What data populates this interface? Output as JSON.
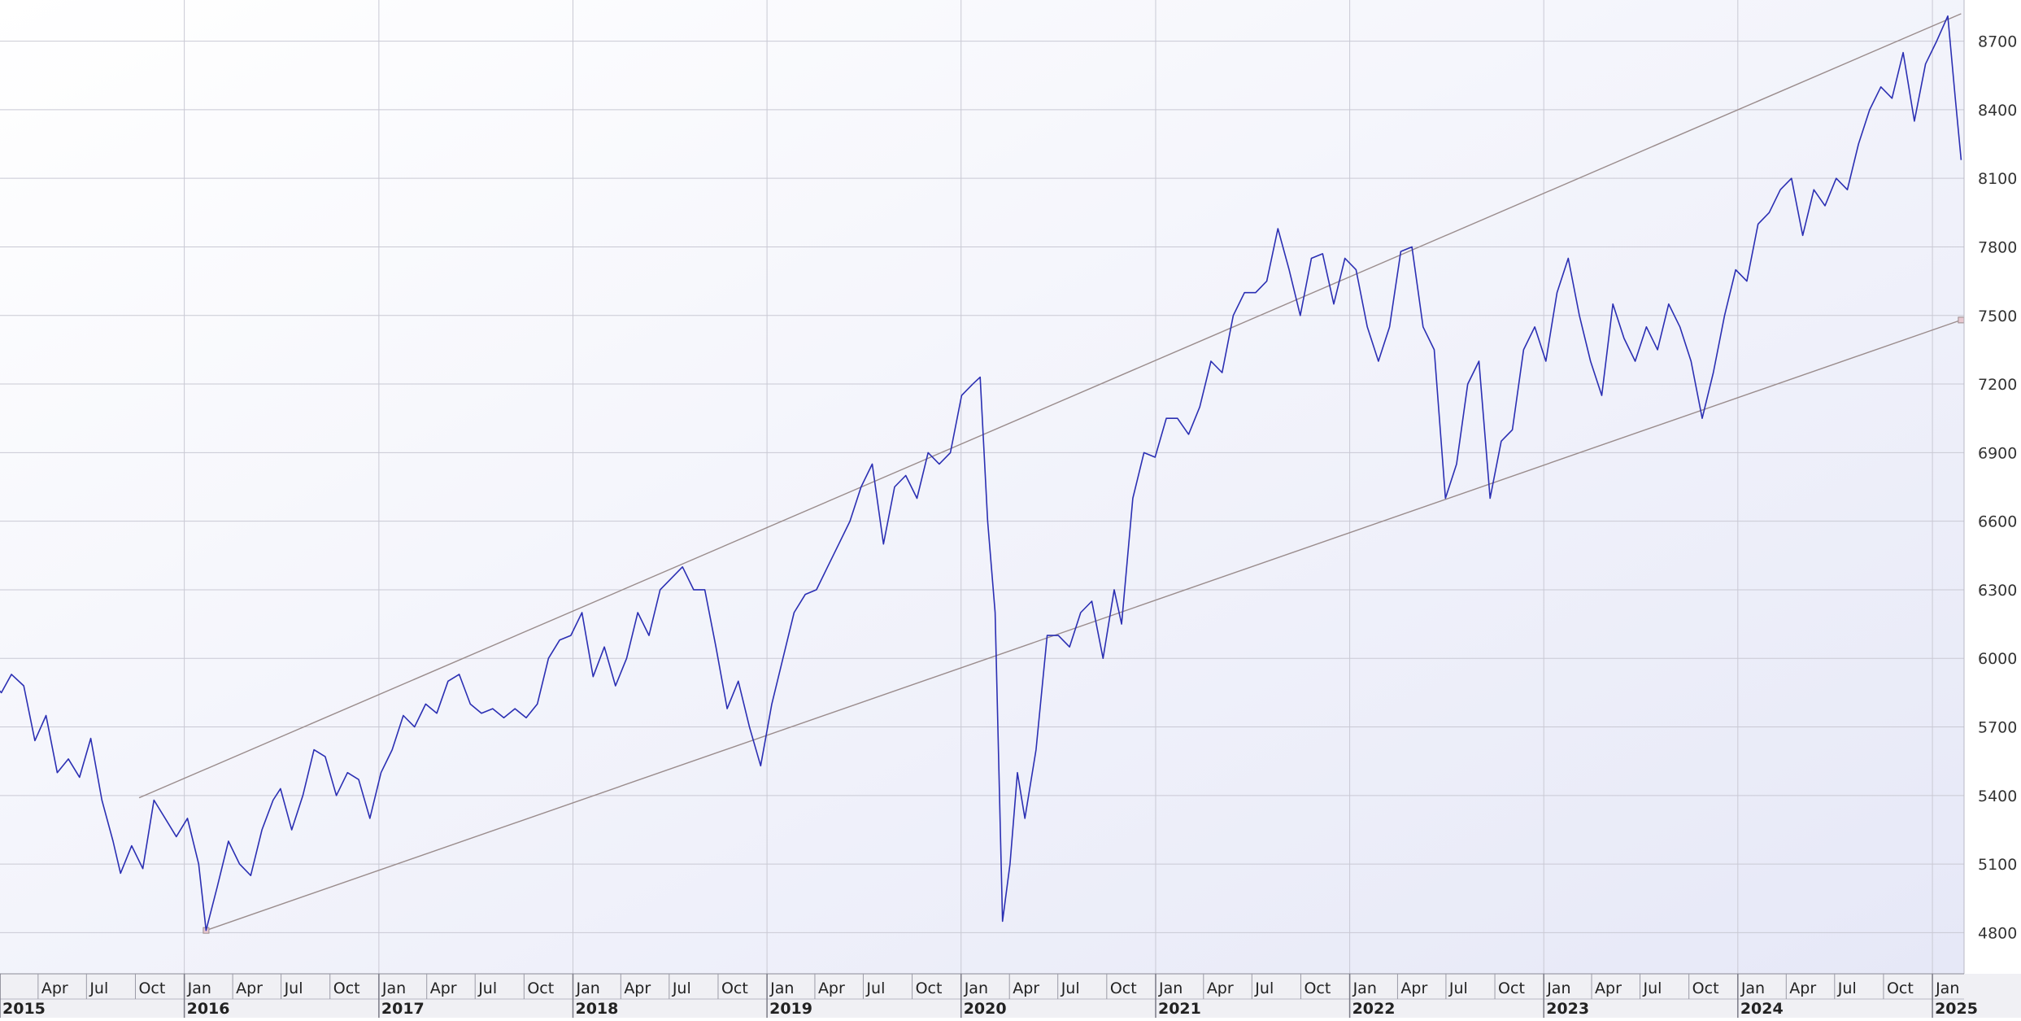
{
  "colors": {
    "plot_bg_top": "#ffffff",
    "plot_bg_bottom": "#e6e8f7",
    "price_line": "#2b2fb3",
    "channel_line": "#9a8c8c",
    "grid": "#c9c9d4",
    "axis_band": "#f0f0f4"
  },
  "chart_data": {
    "type": "line",
    "title": "",
    "xlabel": "",
    "ylabel": "",
    "x_range": [
      "2015-01-01",
      "2025-02-28"
    ],
    "ylim": [
      4620,
      8880
    ],
    "y_axis_position": "right",
    "grid": true,
    "y_ticks": [
      4800,
      5100,
      5400,
      5700,
      6000,
      6300,
      6600,
      6900,
      7200,
      7500,
      7800,
      8100,
      8400,
      8700
    ],
    "x_month_ticks": [
      {
        "date": "2015-04-01",
        "label": "Apr"
      },
      {
        "date": "2015-07-01",
        "label": "Jul"
      },
      {
        "date": "2015-10-01",
        "label": "Oct"
      },
      {
        "date": "2016-01-01",
        "label": "Jan"
      },
      {
        "date": "2016-04-01",
        "label": "Apr"
      },
      {
        "date": "2016-07-01",
        "label": "Jul"
      },
      {
        "date": "2016-10-01",
        "label": "Oct"
      },
      {
        "date": "2017-01-01",
        "label": "Jan"
      },
      {
        "date": "2017-04-01",
        "label": "Apr"
      },
      {
        "date": "2017-07-01",
        "label": "Jul"
      },
      {
        "date": "2017-10-01",
        "label": "Oct"
      },
      {
        "date": "2018-01-01",
        "label": "Jan"
      },
      {
        "date": "2018-04-01",
        "label": "Apr"
      },
      {
        "date": "2018-07-01",
        "label": "Jul"
      },
      {
        "date": "2018-10-01",
        "label": "Oct"
      },
      {
        "date": "2019-01-01",
        "label": "Jan"
      },
      {
        "date": "2019-04-01",
        "label": "Apr"
      },
      {
        "date": "2019-07-01",
        "label": "Jul"
      },
      {
        "date": "2019-10-01",
        "label": "Oct"
      },
      {
        "date": "2020-01-01",
        "label": "Jan"
      },
      {
        "date": "2020-04-01",
        "label": "Apr"
      },
      {
        "date": "2020-07-01",
        "label": "Jul"
      },
      {
        "date": "2020-10-01",
        "label": "Oct"
      },
      {
        "date": "2021-01-01",
        "label": "Jan"
      },
      {
        "date": "2021-04-01",
        "label": "Apr"
      },
      {
        "date": "2021-07-01",
        "label": "Jul"
      },
      {
        "date": "2021-10-01",
        "label": "Oct"
      },
      {
        "date": "2022-01-01",
        "label": "Jan"
      },
      {
        "date": "2022-04-01",
        "label": "Apr"
      },
      {
        "date": "2022-07-01",
        "label": "Jul"
      },
      {
        "date": "2022-10-01",
        "label": "Oct"
      },
      {
        "date": "2023-01-01",
        "label": "Jan"
      },
      {
        "date": "2023-04-01",
        "label": "Apr"
      },
      {
        "date": "2023-07-01",
        "label": "Jul"
      },
      {
        "date": "2023-10-01",
        "label": "Oct"
      },
      {
        "date": "2024-01-01",
        "label": "Jan"
      },
      {
        "date": "2024-04-01",
        "label": "Apr"
      },
      {
        "date": "2024-07-01",
        "label": "Jul"
      },
      {
        "date": "2024-10-01",
        "label": "Oct"
      },
      {
        "date": "2025-01-01",
        "label": "Jan"
      }
    ],
    "x_year_ticks": [
      {
        "date": "2015-01-01",
        "label": "2015"
      },
      {
        "date": "2016-01-01",
        "label": "2016"
      },
      {
        "date": "2017-01-01",
        "label": "2017"
      },
      {
        "date": "2018-01-01",
        "label": "2018"
      },
      {
        "date": "2019-01-01",
        "label": "2019"
      },
      {
        "date": "2020-01-01",
        "label": "2020"
      },
      {
        "date": "2021-01-01",
        "label": "2021"
      },
      {
        "date": "2022-01-01",
        "label": "2022"
      },
      {
        "date": "2023-01-01",
        "label": "2023"
      },
      {
        "date": "2024-01-01",
        "label": "2024"
      },
      {
        "date": "2025-01-01",
        "label": "2025"
      }
    ],
    "series": [
      {
        "points": [
          [
            "2015-01-01",
            5900
          ],
          [
            "2015-01-22",
            5850
          ],
          [
            "2015-02-10",
            5930
          ],
          [
            "2015-03-05",
            5880
          ],
          [
            "2015-03-26",
            5640
          ],
          [
            "2015-04-16",
            5750
          ],
          [
            "2015-05-07",
            5500
          ],
          [
            "2015-05-28",
            5560
          ],
          [
            "2015-06-18",
            5480
          ],
          [
            "2015-07-09",
            5650
          ],
          [
            "2015-07-30",
            5380
          ],
          [
            "2015-08-20",
            5200
          ],
          [
            "2015-09-03",
            5060
          ],
          [
            "2015-09-24",
            5180
          ],
          [
            "2015-10-15",
            5080
          ],
          [
            "2015-11-05",
            5380
          ],
          [
            "2015-11-26",
            5300
          ],
          [
            "2015-12-17",
            5220
          ],
          [
            "2016-01-07",
            5300
          ],
          [
            "2016-01-28",
            5100
          ],
          [
            "2016-02-11",
            4810
          ],
          [
            "2016-03-03",
            5000
          ],
          [
            "2016-03-24",
            5200
          ],
          [
            "2016-04-14",
            5100
          ],
          [
            "2016-05-05",
            5050
          ],
          [
            "2016-05-26",
            5250
          ],
          [
            "2016-06-16",
            5380
          ],
          [
            "2016-06-30",
            5430
          ],
          [
            "2016-07-21",
            5250
          ],
          [
            "2016-08-11",
            5400
          ],
          [
            "2016-09-01",
            5600
          ],
          [
            "2016-09-22",
            5570
          ],
          [
            "2016-10-13",
            5400
          ],
          [
            "2016-11-03",
            5500
          ],
          [
            "2016-11-24",
            5470
          ],
          [
            "2016-12-15",
            5300
          ],
          [
            "2017-01-05",
            5500
          ],
          [
            "2017-01-26",
            5600
          ],
          [
            "2017-02-16",
            5750
          ],
          [
            "2017-03-09",
            5700
          ],
          [
            "2017-03-30",
            5800
          ],
          [
            "2017-04-20",
            5760
          ],
          [
            "2017-05-11",
            5900
          ],
          [
            "2017-06-01",
            5930
          ],
          [
            "2017-06-22",
            5800
          ],
          [
            "2017-07-13",
            5760
          ],
          [
            "2017-08-03",
            5780
          ],
          [
            "2017-08-24",
            5740
          ],
          [
            "2017-09-14",
            5780
          ],
          [
            "2017-10-05",
            5740
          ],
          [
            "2017-10-26",
            5800
          ],
          [
            "2017-11-16",
            6000
          ],
          [
            "2017-12-07",
            6080
          ],
          [
            "2017-12-28",
            6100
          ],
          [
            "2018-01-18",
            6200
          ],
          [
            "2018-02-08",
            5920
          ],
          [
            "2018-03-01",
            6050
          ],
          [
            "2018-03-22",
            5880
          ],
          [
            "2018-04-12",
            6000
          ],
          [
            "2018-05-03",
            6200
          ],
          [
            "2018-05-24",
            6100
          ],
          [
            "2018-06-14",
            6300
          ],
          [
            "2018-07-05",
            6350
          ],
          [
            "2018-07-26",
            6400
          ],
          [
            "2018-08-16",
            6300
          ],
          [
            "2018-09-06",
            6300
          ],
          [
            "2018-09-27",
            6050
          ],
          [
            "2018-10-18",
            5780
          ],
          [
            "2018-11-08",
            5900
          ],
          [
            "2018-11-29",
            5700
          ],
          [
            "2018-12-20",
            5530
          ],
          [
            "2019-01-10",
            5800
          ],
          [
            "2019-01-31",
            6000
          ],
          [
            "2019-02-21",
            6200
          ],
          [
            "2019-03-14",
            6280
          ],
          [
            "2019-04-04",
            6300
          ],
          [
            "2019-04-25",
            6400
          ],
          [
            "2019-05-16",
            6500
          ],
          [
            "2019-06-06",
            6600
          ],
          [
            "2019-06-27",
            6750
          ],
          [
            "2019-07-18",
            6850
          ],
          [
            "2019-08-08",
            6500
          ],
          [
            "2019-08-29",
            6750
          ],
          [
            "2019-09-19",
            6800
          ],
          [
            "2019-10-10",
            6700
          ],
          [
            "2019-10-31",
            6900
          ],
          [
            "2019-11-21",
            6850
          ],
          [
            "2019-12-12",
            6900
          ],
          [
            "2020-01-02",
            7150
          ],
          [
            "2020-01-23",
            7200
          ],
          [
            "2020-02-06",
            7230
          ],
          [
            "2020-02-20",
            6600
          ],
          [
            "2020-03-05",
            6200
          ],
          [
            "2020-03-19",
            4850
          ],
          [
            "2020-04-02",
            5100
          ],
          [
            "2020-04-16",
            5500
          ],
          [
            "2020-04-30",
            5300
          ],
          [
            "2020-05-21",
            5600
          ],
          [
            "2020-06-11",
            6100
          ],
          [
            "2020-07-02",
            6100
          ],
          [
            "2020-07-23",
            6050
          ],
          [
            "2020-08-13",
            6200
          ],
          [
            "2020-09-03",
            6250
          ],
          [
            "2020-09-24",
            6000
          ],
          [
            "2020-10-15",
            6300
          ],
          [
            "2020-10-29",
            6150
          ],
          [
            "2020-11-19",
            6700
          ],
          [
            "2020-12-10",
            6900
          ],
          [
            "2020-12-31",
            6880
          ],
          [
            "2021-01-21",
            7050
          ],
          [
            "2021-02-11",
            7050
          ],
          [
            "2021-03-04",
            6980
          ],
          [
            "2021-03-25",
            7100
          ],
          [
            "2021-04-15",
            7300
          ],
          [
            "2021-05-06",
            7250
          ],
          [
            "2021-05-27",
            7500
          ],
          [
            "2021-06-17",
            7600
          ],
          [
            "2021-07-08",
            7600
          ],
          [
            "2021-07-29",
            7650
          ],
          [
            "2021-08-19",
            7880
          ],
          [
            "2021-09-09",
            7700
          ],
          [
            "2021-09-30",
            7500
          ],
          [
            "2021-10-21",
            7750
          ],
          [
            "2021-11-11",
            7770
          ],
          [
            "2021-12-02",
            7550
          ],
          [
            "2021-12-23",
            7750
          ],
          [
            "2022-01-13",
            7700
          ],
          [
            "2022-02-03",
            7450
          ],
          [
            "2022-02-24",
            7300
          ],
          [
            "2022-03-17",
            7450
          ],
          [
            "2022-04-07",
            7780
          ],
          [
            "2022-04-28",
            7800
          ],
          [
            "2022-05-19",
            7450
          ],
          [
            "2022-06-09",
            7350
          ],
          [
            "2022-06-30",
            6700
          ],
          [
            "2022-07-21",
            6850
          ],
          [
            "2022-08-11",
            7200
          ],
          [
            "2022-09-01",
            7300
          ],
          [
            "2022-09-22",
            6700
          ],
          [
            "2022-10-13",
            6950
          ],
          [
            "2022-11-03",
            7000
          ],
          [
            "2022-11-24",
            7350
          ],
          [
            "2022-12-15",
            7450
          ],
          [
            "2023-01-05",
            7300
          ],
          [
            "2023-01-26",
            7600
          ],
          [
            "2023-02-16",
            7750
          ],
          [
            "2023-03-09",
            7500
          ],
          [
            "2023-03-30",
            7300
          ],
          [
            "2023-04-20",
            7150
          ],
          [
            "2023-05-11",
            7550
          ],
          [
            "2023-06-01",
            7400
          ],
          [
            "2023-06-22",
            7300
          ],
          [
            "2023-07-13",
            7450
          ],
          [
            "2023-08-03",
            7350
          ],
          [
            "2023-08-24",
            7550
          ],
          [
            "2023-09-14",
            7450
          ],
          [
            "2023-10-05",
            7300
          ],
          [
            "2023-10-26",
            7050
          ],
          [
            "2023-11-16",
            7250
          ],
          [
            "2023-12-07",
            7500
          ],
          [
            "2023-12-28",
            7700
          ],
          [
            "2024-01-18",
            7650
          ],
          [
            "2024-02-08",
            7900
          ],
          [
            "2024-02-29",
            7950
          ],
          [
            "2024-03-21",
            8050
          ],
          [
            "2024-04-11",
            8100
          ],
          [
            "2024-05-02",
            7850
          ],
          [
            "2024-05-23",
            8050
          ],
          [
            "2024-06-13",
            7980
          ],
          [
            "2024-07-04",
            8100
          ],
          [
            "2024-07-25",
            8050
          ],
          [
            "2024-08-15",
            8250
          ],
          [
            "2024-09-05",
            8400
          ],
          [
            "2024-09-26",
            8500
          ],
          [
            "2024-10-17",
            8450
          ],
          [
            "2024-11-07",
            8650
          ],
          [
            "2024-11-28",
            8350
          ],
          [
            "2024-12-19",
            8600
          ],
          [
            "2025-01-09",
            8700
          ],
          [
            "2025-01-30",
            8810
          ],
          [
            "2025-02-13",
            8450
          ],
          [
            "2025-02-24",
            8180
          ]
        ]
      }
    ],
    "trend_lines": [
      {
        "start": [
          "2015-10-08",
          5390
        ],
        "end": [
          "2025-02-24",
          8820
        ]
      },
      {
        "start": [
          "2016-02-11",
          4810
        ],
        "end": [
          "2025-02-24",
          7480
        ]
      }
    ]
  }
}
